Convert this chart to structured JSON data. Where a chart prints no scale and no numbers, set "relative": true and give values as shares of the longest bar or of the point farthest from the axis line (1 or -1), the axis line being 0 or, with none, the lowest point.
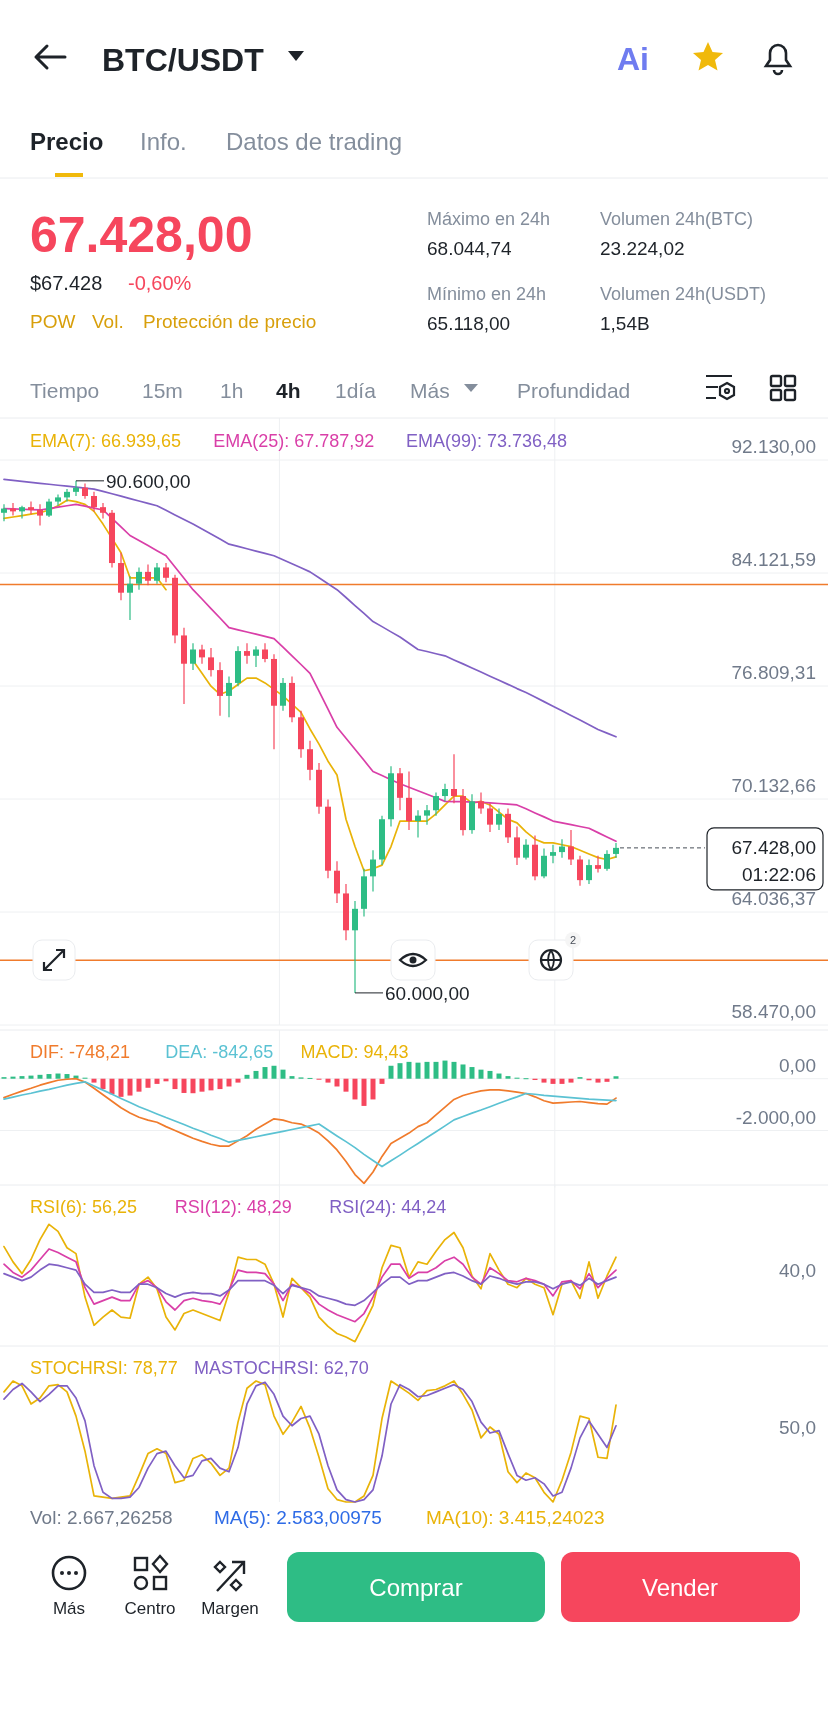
{
  "chart_data": [
    {
      "type": "other",
      "title": "BTC/USDT",
      "annotations": [
        "Precio",
        "Info.",
        "Datos de trading",
        "67.428,00",
        "$67.428",
        "-0,60%",
        "POW",
        "Vol.",
        "Protección de precio",
        "Máximo en 24h",
        "68.044,74",
        "Mínimo en 24h",
        "65.118,00",
        "Volumen 24h(BTC)",
        "23.224,02",
        "Volumen 24h(USDT)",
        "1,54B",
        "Tiempo",
        "15m",
        "1h",
        "4h",
        "1día",
        "Más",
        "Profundidad",
        "Ai"
      ]
    },
    {
      "type": "candlestick",
      "log": true,
      "grid": true,
      "legend": "top",
      "tick_labels": "y",
      "categories": [
        null,
        null,
        null,
        null,
        null,
        null,
        null,
        null,
        null,
        null,
        null,
        null,
        null,
        null,
        null,
        null,
        null,
        null,
        null,
        null,
        null,
        null,
        null,
        null,
        null,
        null,
        null,
        null,
        null,
        null,
        null,
        null,
        null,
        null,
        null,
        null,
        null,
        null,
        null,
        null,
        null,
        null,
        null,
        null,
        null,
        null,
        null,
        null,
        null,
        null,
        null,
        null,
        null,
        null,
        null,
        null,
        null,
        null,
        null,
        null,
        null,
        null,
        null,
        null,
        null,
        null,
        null,
        null,
        null
      ],
      "ylim": [
        58470,
        95100
      ],
      "yticks": [
        {
          "value": 92130,
          "label": "92.130,00"
        },
        {
          "value": 84121.59,
          "label": "84.121,59"
        },
        {
          "value": 76809.31,
          "label": "76.809,31"
        },
        {
          "value": 70132.66,
          "label": "70.132,66"
        },
        {
          "value": 64036.37,
          "label": "64.036,37"
        },
        {
          "value": 58470,
          "label": "58.470,00"
        }
      ],
      "ohlc": [
        [
          88300,
          88900,
          87700,
          88600
        ],
        [
          88600,
          89000,
          88100,
          88400
        ],
        [
          88400,
          88800,
          87900,
          88700
        ],
        [
          88700,
          89100,
          88200,
          88500
        ],
        [
          88500,
          88900,
          87400,
          88100
        ],
        [
          88100,
          89300,
          88000,
          89100
        ],
        [
          89100,
          89600,
          88800,
          89400
        ],
        [
          89400,
          90000,
          89100,
          89800
        ],
        [
          89800,
          90600,
          89500,
          90100
        ],
        [
          90100,
          90400,
          89300,
          89500
        ],
        [
          89500,
          89800,
          88400,
          88700
        ],
        [
          88700,
          89000,
          87900,
          88300
        ],
        [
          88300,
          88500,
          84500,
          84800
        ],
        [
          84800,
          85500,
          82300,
          82800
        ],
        [
          82800,
          83900,
          81000,
          83400
        ],
        [
          83400,
          84500,
          83000,
          84200
        ],
        [
          84200,
          84700,
          83300,
          83600
        ],
        [
          83600,
          84800,
          83400,
          84500
        ],
        [
          84500,
          84800,
          83500,
          83800
        ],
        [
          83800,
          84000,
          79500,
          80000
        ],
        [
          80000,
          80500,
          75700,
          78200
        ],
        [
          78200,
          79500,
          77800,
          79100
        ],
        [
          79100,
          79400,
          78200,
          78600
        ],
        [
          78600,
          79200,
          77400,
          77800
        ],
        [
          77800,
          78300,
          75000,
          76200
        ],
        [
          76200,
          77400,
          74900,
          77000
        ],
        [
          77000,
          79300,
          76800,
          79000
        ],
        [
          79000,
          79500,
          78200,
          78700
        ],
        [
          78700,
          79300,
          78000,
          79100
        ],
        [
          79100,
          79500,
          78300,
          78500
        ],
        [
          78500,
          78800,
          73000,
          75600
        ],
        [
          75600,
          77300,
          75300,
          77000
        ],
        [
          77000,
          77400,
          74600,
          74900
        ],
        [
          74900,
          75300,
          72500,
          73000
        ],
        [
          73000,
          73500,
          71200,
          71800
        ],
        [
          71800,
          72200,
          69300,
          69700
        ],
        [
          69700,
          70100,
          65800,
          66200
        ],
        [
          66200,
          66700,
          64500,
          65000
        ],
        [
          65000,
          65500,
          62600,
          63100
        ],
        [
          63100,
          64600,
          60000,
          64200
        ],
        [
          64200,
          66300,
          63800,
          65900
        ],
        [
          65900,
          67300,
          65100,
          66800
        ],
        [
          66800,
          69200,
          66500,
          69000
        ],
        [
          69000,
          72000,
          68600,
          71600
        ],
        [
          71600,
          71900,
          69500,
          70200
        ],
        [
          70200,
          71700,
          68400,
          68900
        ],
        [
          68900,
          69500,
          68000,
          69200
        ],
        [
          69200,
          69800,
          68700,
          69500
        ],
        [
          69500,
          70500,
          69200,
          70300
        ],
        [
          70300,
          71000,
          70000,
          70700
        ],
        [
          70700,
          72700,
          69900,
          70300
        ],
        [
          70300,
          70700,
          68100,
          68400
        ],
        [
          68400,
          70400,
          68200,
          70000
        ],
        [
          70000,
          70500,
          69300,
          69600
        ],
        [
          69600,
          69900,
          68300,
          68700
        ],
        [
          68700,
          69600,
          68400,
          69300
        ],
        [
          69300,
          69600,
          67700,
          68000
        ],
        [
          68000,
          68600,
          66500,
          66900
        ],
        [
          66900,
          67900,
          66800,
          67600
        ],
        [
          67600,
          68100,
          65700,
          65900
        ],
        [
          65900,
          67400,
          65800,
          67000
        ],
        [
          67000,
          67600,
          66600,
          67200
        ],
        [
          67200,
          67900,
          66900,
          67500
        ],
        [
          67500,
          68400,
          66500,
          66800
        ],
        [
          66800,
          67000,
          65400,
          65700
        ],
        [
          65700,
          66800,
          65500,
          66500
        ],
        [
          66500,
          67000,
          66100,
          66300
        ],
        [
          66300,
          67300,
          66200,
          67100
        ],
        [
          67100,
          67700,
          66900,
          67428
        ]
      ],
      "series": [
        {
          "name": "EMA(7): 66.939,65",
          "type": "line",
          "color": "#e9b308",
          "values": [
            87900,
            88000,
            88100,
            88200,
            88300,
            88500,
            88800,
            89200,
            89100,
            88900,
            88400,
            87500,
            86500,
            85500,
            83800,
            83800,
            83800,
            83800,
            83000,
            null,
            null,
            78400,
            77600,
            76800,
            76300,
            76500,
            76900,
            77300,
            77300,
            77000,
            76600,
            76200,
            75700,
            75200,
            74200,
            73300,
            72300,
            71500,
            69000,
            67500,
            66200,
            66300,
            66500,
            67500,
            68900,
            68900,
            68900,
            68900,
            69300,
            69800,
            70300,
            70300,
            69900,
            70000,
            69800,
            69400,
            69000,
            68800,
            68300,
            67900,
            67700,
            67700,
            67600,
            67500,
            67300,
            67100,
            66900,
            66800,
            66939.65
          ]
        },
        {
          "name": "EMA(25): 67.787,92",
          "type": "line",
          "color": "#d93fa8",
          "values": [
            88600,
            88580,
            88550,
            88530,
            88500,
            88600,
            88700,
            88800,
            88900,
            88770,
            88630,
            88500,
            87900,
            87300,
            86700,
            86350,
            86000,
            85650,
            85300,
            84530,
            83770,
            83000,
            82380,
            81750,
            81130,
            80500,
            80360,
            80220,
            80080,
            79940,
            79800,
            79250,
            78700,
            78150,
            77600,
            76500,
            75400,
            74300,
            73650,
            73000,
            72350,
            71700,
            71470,
            71230,
            71000,
            70800,
            70600,
            70400,
            70200,
            70000,
            69990,
            69980,
            69960,
            69950,
            69910,
            69880,
            69840,
            69800,
            69580,
            69350,
            69130,
            68900,
            68800,
            68700,
            68600,
            68500,
            68260,
            68020,
            67787.92
          ]
        },
        {
          "name": "EMA(99): 73.736,48",
          "type": "line",
          "color": "#8060c4",
          "values": [
            90700,
            90630,
            90560,
            90490,
            90420,
            90350,
            90280,
            90210,
            90140,
            90070,
            90000,
            89830,
            89660,
            89490,
            89310,
            89140,
            88970,
            88800,
            88480,
            88150,
            87830,
            87500,
            87150,
            86800,
            86450,
            86100,
            85940,
            85780,
            85620,
            85460,
            85300,
            85030,
            84750,
            84480,
            84200,
            83800,
            83400,
            83000,
            82480,
            81950,
            81430,
            80900,
            80570,
            80230,
            79900,
            79500,
            79100,
            78970,
            78830,
            78700,
            78440,
            78190,
            77930,
            77680,
            77420,
            77160,
            76910,
            76650,
            76410,
            76130,
            75850,
            75570,
            75290,
            75010,
            74730,
            74450,
            74170,
            73950,
            73736.48
          ]
        }
      ],
      "ref_lines": [
        {
          "axis": "y",
          "value": 83350,
          "color": "#f07b2c"
        },
        {
          "axis": "y",
          "value": 61600,
          "color": "#f07b2c"
        },
        {
          "axis": "y",
          "value": 67428,
          "label": "67.428,00",
          "color": "#474d57",
          "line_style": "dashed"
        }
      ],
      "annotations": [
        "90.600,00",
        "60.000,00",
        "01:22:06",
        "2"
      ]
    },
    {
      "type": "bar",
      "grid": true,
      "legend": "top left",
      "tick_labels": "y",
      "categories": [
        null,
        null,
        null,
        null,
        null,
        null,
        null,
        null,
        null,
        null,
        null,
        null,
        null,
        null,
        null,
        null,
        null,
        null,
        null,
        null,
        null,
        null,
        null,
        null,
        null,
        null,
        null,
        null,
        null,
        null,
        null,
        null,
        null,
        null,
        null,
        null,
        null,
        null,
        null,
        null,
        null,
        null,
        null,
        null,
        null,
        null,
        null,
        null,
        null,
        null,
        null,
        null,
        null,
        null,
        null,
        null,
        null,
        null,
        null,
        null,
        null,
        null,
        null,
        null,
        null,
        null,
        null,
        null,
        null
      ],
      "ylim": [
        -4200,
        1900
      ],
      "yticks": [
        {
          "value": 0,
          "label": "0,00"
        },
        {
          "value": -2000,
          "label": "-2.000,00"
        }
      ],
      "series": [
        {
          "name": "DIF: -748,21",
          "type": "line",
          "color": "#f07b2c",
          "values": [
            -730,
            -600,
            -480,
            -370,
            -250,
            -150,
            -60,
            -20,
            0,
            -130,
            -370,
            -620,
            -870,
            -1120,
            -1320,
            -1490,
            -1600,
            -1680,
            -1850,
            -2000,
            -2150,
            -2300,
            -2420,
            -2530,
            -2600,
            -2600,
            -2400,
            -2200,
            -1950,
            -1750,
            -1550,
            -1600,
            -1700,
            -1750,
            -1900,
            -2100,
            -2400,
            -2750,
            -3200,
            -3700,
            -4040,
            -3600,
            -3000,
            -2500,
            -2300,
            -2100,
            -1850,
            -1700,
            -1400,
            -1100,
            -800,
            -650,
            -550,
            -470,
            -430,
            -430,
            -470,
            -520,
            -570,
            -700,
            -850,
            -940,
            -920,
            -900,
            -880,
            -920,
            -960,
            -980,
            -748.21
          ]
        },
        {
          "name": "DEA: -842,65",
          "type": "line",
          "color": "#5bc2d3",
          "values": [
            -790,
            -710,
            -630,
            -560,
            -480,
            -410,
            -330,
            -250,
            -180,
            -120,
            -280,
            -440,
            -600,
            -760,
            -920,
            -1080,
            -1220,
            -1360,
            -1500,
            -1630,
            -1770,
            -1910,
            -2040,
            -2180,
            -2310,
            -2450,
            -2380,
            -2310,
            -2240,
            -2170,
            -2100,
            -2030,
            -1960,
            -1890,
            -1820,
            -1750,
            -1980,
            -2210,
            -2430,
            -2660,
            -2920,
            -3160,
            -3390,
            -3170,
            -2950,
            -2720,
            -2500,
            -2270,
            -2050,
            -1820,
            -1590,
            -1460,
            -1330,
            -1210,
            -1080,
            -950,
            -820,
            -700,
            -570,
            -600,
            -640,
            -670,
            -700,
            -730,
            -760,
            -790,
            -810,
            -830,
            -842.65
          ]
        },
        {
          "name": "MACD: 94,43",
          "type": "bar",
          "colors": [
            "#2ebd85",
            "#2ebd85",
            "#2ebd85",
            "#2ebd85",
            "#2ebd85",
            "#2ebd85",
            "#2ebd85",
            "#2ebd85",
            "#2ebd85",
            "#2ebd85",
            "#f6465d",
            "#f6465d",
            "#f6465d",
            "#f6465d",
            "#f6465d",
            "#f6465d",
            "#f6465d",
            "#f6465d",
            "#f6465d",
            "#f6465d",
            "#f6465d",
            "#f6465d",
            "#f6465d",
            "#f6465d",
            "#f6465d",
            "#f6465d",
            "#f6465d",
            "#2ebd85",
            "#2ebd85",
            "#2ebd85",
            "#2ebd85",
            "#2ebd85",
            "#2ebd85",
            "#2ebd85",
            "#2ebd85",
            "#f6465d",
            "#f6465d",
            "#f6465d",
            "#f6465d",
            "#f6465d",
            "#f6465d",
            "#f6465d",
            "#f6465d",
            "#2ebd85",
            "#2ebd85",
            "#2ebd85",
            "#2ebd85",
            "#2ebd85",
            "#2ebd85",
            "#2ebd85",
            "#2ebd85",
            "#2ebd85",
            "#2ebd85",
            "#2ebd85",
            "#2ebd85",
            "#2ebd85",
            "#2ebd85",
            "#2ebd85",
            "#2ebd85",
            "#f6465d",
            "#f6465d",
            "#f6465d",
            "#f6465d",
            "#f6465d",
            "#2ebd85",
            "#f6465d",
            "#f6465d",
            "#f6465d",
            "#2ebd85"
          ],
          "values": [
            60,
            80,
            100,
            120,
            150,
            180,
            200,
            180,
            120,
            40,
            -150,
            -400,
            -600,
            -700,
            -650,
            -500,
            -350,
            -200,
            -100,
            -400,
            -550,
            -560,
            -500,
            -450,
            -400,
            -300,
            -150,
            150,
            300,
            450,
            500,
            350,
            100,
            50,
            30,
            -20,
            -150,
            -300,
            -500,
            -800,
            -1050,
            -800,
            -200,
            500,
            600,
            650,
            620,
            650,
            650,
            700,
            650,
            550,
            450,
            350,
            300,
            200,
            100,
            40,
            20,
            -50,
            -150,
            -200,
            -200,
            -150,
            60,
            -60,
            -150,
            -120,
            94.43
          ]
        }
      ]
    },
    {
      "type": "line",
      "grid": true,
      "legend": "top left",
      "categories": [
        null,
        null,
        null,
        null,
        null,
        null,
        null,
        null,
        null,
        null,
        null,
        null,
        null,
        null,
        null,
        null,
        null,
        null,
        null,
        null,
        null,
        null,
        null,
        null,
        null,
        null,
        null,
        null,
        null,
        null,
        null,
        null,
        null,
        null,
        null,
        null,
        null,
        null,
        null,
        null,
        null,
        null,
        null,
        null,
        null,
        null,
        null,
        null,
        null,
        null,
        null,
        null,
        null,
        null,
        null,
        null,
        null,
        null,
        null,
        null,
        null,
        null,
        null,
        null,
        null,
        null,
        null,
        null,
        null
      ],
      "relative": true,
      "annotations": [
        "40,0"
      ],
      "series": [
        {
          "name": "RSI(6): 56,25",
          "color": "#e9b308",
          "values": [
            0.81,
            0.68,
            0.58,
            0.7,
            0.87,
            1,
            0.94,
            0.8,
            0.75,
            0.38,
            0.14,
            0.21,
            0.27,
            0.21,
            0.2,
            0.49,
            0.55,
            0.45,
            0.21,
            0.1,
            0.24,
            0.27,
            0.24,
            0.21,
            0.18,
            0.42,
            0.72,
            0.7,
            0.7,
            0.66,
            0.49,
            0.21,
            0.54,
            0.46,
            0.38,
            0.21,
            0.13,
            0.07,
            0.04,
            0,
            0.15,
            0.31,
            0.63,
            0.82,
            0.8,
            0.55,
            0.68,
            0.66,
            0.77,
            0.87,
            0.93,
            0.8,
            0.56,
            0.45,
            0.75,
            0.61,
            0.49,
            0.46,
            0.54,
            0.49,
            0.46,
            0.23,
            0.49,
            0.52,
            0.37,
            0.68,
            0.37,
            0.56,
            0.72
          ]
        },
        {
          "name": "RSI(12): 48,29",
          "color": "#d93fa8",
          "values": [
            0.66,
            0.59,
            0.55,
            0.61,
            0.7,
            0.79,
            0.76,
            0.72,
            0.68,
            0.46,
            0.32,
            0.35,
            0.38,
            0.35,
            0.35,
            0.49,
            0.52,
            0.46,
            0.34,
            0.27,
            0.35,
            0.37,
            0.35,
            0.34,
            0.32,
            0.44,
            0.61,
            0.59,
            0.59,
            0.58,
            0.49,
            0.35,
            0.49,
            0.46,
            0.41,
            0.32,
            0.27,
            0.23,
            0.2,
            0.17,
            0.24,
            0.38,
            0.55,
            0.66,
            0.66,
            0.54,
            0.59,
            0.59,
            0.63,
            0.69,
            0.72,
            0.66,
            0.55,
            0.49,
            0.63,
            0.58,
            0.52,
            0.51,
            0.54,
            0.52,
            0.49,
            0.39,
            0.51,
            0.52,
            0.45,
            0.58,
            0.46,
            0.54,
            0.61
          ]
        },
        {
          "name": "RSI(24): 44,24",
          "color": "#8060c4",
          "values": [
            0.58,
            0.55,
            0.52,
            0.55,
            0.61,
            0.66,
            0.65,
            0.63,
            0.61,
            0.49,
            0.42,
            0.42,
            0.44,
            0.42,
            0.42,
            0.49,
            0.49,
            0.46,
            0.41,
            0.38,
            0.41,
            0.42,
            0.41,
            0.41,
            0.39,
            0.44,
            0.52,
            0.52,
            0.52,
            0.52,
            0.48,
            0.41,
            0.48,
            0.46,
            0.44,
            0.39,
            0.37,
            0.35,
            0.32,
            0.31,
            0.35,
            0.42,
            0.49,
            0.55,
            0.55,
            0.49,
            0.52,
            0.52,
            0.55,
            0.58,
            0.59,
            0.56,
            0.52,
            0.49,
            0.56,
            0.54,
            0.51,
            0.49,
            0.51,
            0.51,
            0.49,
            0.45,
            0.49,
            0.51,
            0.48,
            0.54,
            0.49,
            0.52,
            0.55
          ]
        }
      ]
    },
    {
      "type": "line",
      "grid": true,
      "legend": "top left",
      "categories": [
        null,
        null,
        null,
        null,
        null,
        null,
        null,
        null,
        null,
        null,
        null,
        null,
        null,
        null,
        null,
        null,
        null,
        null,
        null,
        null,
        null,
        null,
        null,
        null,
        null,
        null,
        null,
        null,
        null,
        null,
        null,
        null,
        null,
        null,
        null,
        null,
        null,
        null,
        null,
        null,
        null,
        null,
        null,
        null,
        null,
        null,
        null,
        null,
        null,
        null,
        null,
        null,
        null,
        null,
        null,
        null,
        null,
        null,
        null,
        null,
        null,
        null,
        null,
        null,
        null,
        null,
        null,
        null,
        null
      ],
      "relative": true,
      "series": [
        {
          "name": "STOCHRSI: 78,77",
          "color": "#e9b308",
          "values": [
            0.91,
            1,
            0.96,
            0.81,
            0.86,
            0.96,
            0.97,
            0.91,
            0.71,
            0.42,
            0.05,
            0.04,
            0.03,
            0.04,
            0.05,
            0.22,
            0.4,
            0.44,
            0.4,
            0.16,
            0.18,
            0.36,
            0.39,
            0.32,
            0.22,
            0.28,
            0.66,
            0.94,
            1,
            0.97,
            0.71,
            0.56,
            0.66,
            0.79,
            0.61,
            0.37,
            0.11,
            0.02,
            0,
            0,
            0.05,
            0.22,
            0.69,
            1,
            0.95,
            0.9,
            0.84,
            0.92,
            0.93,
            0.96,
            1,
            0.89,
            0.76,
            0.53,
            0.62,
            0.56,
            0.25,
            0.16,
            0.24,
            0.2,
            0.08,
            0,
            0.18,
            0.41,
            0.71,
            0.69,
            0.37,
            0.36,
            0.8
          ]
        },
        {
          "name": "MASTOCHRSI: 62,70",
          "color": "#8060c4",
          "values": [
            0.85,
            0.93,
            0.98,
            0.91,
            0.83,
            0.89,
            0.96,
            0.96,
            0.86,
            0.67,
            0.3,
            0.08,
            0.03,
            0.03,
            0.04,
            0.12,
            0.28,
            0.4,
            0.42,
            0.3,
            0.2,
            0.22,
            0.34,
            0.36,
            0.28,
            0.25,
            0.45,
            0.81,
            0.96,
            0.99,
            0.89,
            0.71,
            0.63,
            0.69,
            0.71,
            0.56,
            0.3,
            0.1,
            0.02,
            0,
            0.02,
            0.1,
            0.38,
            0.81,
            0.97,
            0.93,
            0.87,
            0.88,
            0.91,
            0.94,
            0.97,
            0.93,
            0.83,
            0.66,
            0.57,
            0.59,
            0.4,
            0.22,
            0.18,
            0.2,
            0.15,
            0.05,
            0.08,
            0.28,
            0.53,
            0.67,
            0.56,
            0.45,
            0.63
          ]
        }
      ],
      "annotations": [
        "50,0",
        "Vol: 2.667,26258",
        "MA(5): 2.583,00975",
        "MA(10): 3.415,24023"
      ]
    },
    {
      "type": "other",
      "annotations": [
        "Más",
        "Centro",
        "Margen",
        "Comprar",
        "Vender"
      ]
    }
  ]
}
